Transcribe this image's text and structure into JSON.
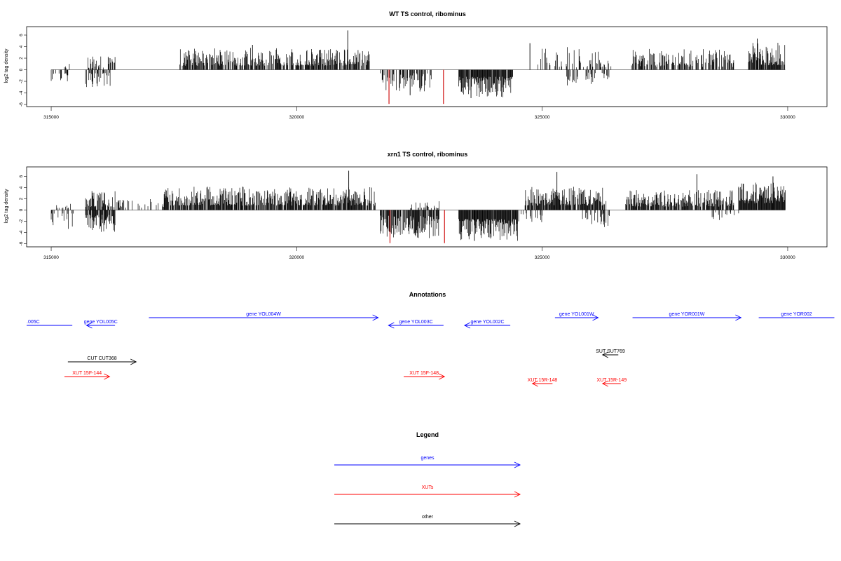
{
  "colors": {
    "gene": "#0000ff",
    "xut": "#ff0000",
    "other": "#000000",
    "highlight": "#cc0000",
    "bar": "#000000"
  },
  "chart_data": [
    {
      "type": "bar",
      "title": "WT TS control, ribominus",
      "ylabel": "log2 tag density",
      "xlim": [
        314500,
        330800
      ],
      "ylim": [
        -6,
        7.3
      ],
      "xticks": [
        315000,
        320000,
        325000,
        330000
      ],
      "xtick_labels": [
        "315000",
        "320000",
        "325000",
        "330000"
      ],
      "yticks": [
        -6,
        -4,
        -2,
        0,
        2,
        4,
        6
      ],
      "ytick_labels": [
        "-6",
        "-4",
        "-2",
        "0",
        "2",
        "4",
        "6"
      ],
      "segments": [
        {
          "from": 315000,
          "to": 315400,
          "sign": -1,
          "lo": 0.6,
          "hi": 2.4,
          "density": 0.3
        },
        {
          "from": 315250,
          "to": 315400,
          "sign": 1,
          "lo": 0.3,
          "hi": 1.8,
          "density": 0.3
        },
        {
          "from": 315700,
          "to": 316200,
          "sign": -1,
          "lo": 0.5,
          "hi": 3.0,
          "density": 0.55
        },
        {
          "from": 315750,
          "to": 316300,
          "sign": 1,
          "lo": 0.3,
          "hi": 2.3,
          "density": 0.4
        },
        {
          "from": 317600,
          "to": 321500,
          "sign": 1,
          "lo": 0.7,
          "hi": 3.8,
          "density": 0.72
        },
        {
          "from": 321700,
          "to": 322800,
          "sign": -1,
          "lo": 0.6,
          "hi": 3.8,
          "density": 0.55
        },
        {
          "from": 323300,
          "to": 324400,
          "sign": -1,
          "lo": 1.2,
          "hi": 4.8,
          "density": 0.95
        },
        {
          "from": 324900,
          "to": 325700,
          "sign": 1,
          "lo": 0.4,
          "hi": 4.0,
          "density": 0.4
        },
        {
          "from": 325500,
          "to": 326400,
          "sign": -1,
          "lo": 0.5,
          "hi": 2.8,
          "density": 0.25
        },
        {
          "from": 325700,
          "to": 326400,
          "sign": 1,
          "lo": 0.4,
          "hi": 3.6,
          "density": 0.35
        },
        {
          "from": 326800,
          "to": 328900,
          "sign": 1,
          "lo": 0.5,
          "hi": 3.6,
          "density": 0.62
        },
        {
          "from": 329200,
          "to": 329950,
          "sign": 1,
          "lo": 0.8,
          "hi": 4.8,
          "density": 0.82
        }
      ],
      "spikes": [
        {
          "x": 321040,
          "y": 6.8,
          "color": "bar"
        },
        {
          "x": 319100,
          "y": 4.3,
          "color": "bar"
        },
        {
          "x": 324750,
          "y": 4.6,
          "color": "bar"
        },
        {
          "x": 329380,
          "y": 5.4,
          "color": "bar"
        },
        {
          "x": 322310,
          "y": -4.4,
          "color": "bar"
        },
        {
          "x": 323550,
          "y": -4.9,
          "color": "bar"
        },
        {
          "x": 321880,
          "y": -5.9,
          "color": "highlight"
        },
        {
          "x": 322990,
          "y": -5.9,
          "color": "highlight"
        }
      ]
    },
    {
      "type": "bar",
      "title": "xrn1 TS control, ribominus",
      "ylabel": "log2 tag density",
      "xlim": [
        314500,
        330800
      ],
      "ylim": [
        -6,
        7.3
      ],
      "xticks": [
        315000,
        320000,
        325000,
        330000
      ],
      "xtick_labels": [
        "315000",
        "320000",
        "325000",
        "330000"
      ],
      "yticks": [
        -6,
        -4,
        -2,
        0,
        2,
        4,
        6
      ],
      "ytick_labels": [
        "-6",
        "-4",
        "-2",
        "0",
        "2",
        "4",
        "6"
      ],
      "segments": [
        {
          "from": 315000,
          "to": 315450,
          "sign": -1,
          "lo": 0.6,
          "hi": 3.6,
          "density": 0.35
        },
        {
          "from": 315100,
          "to": 315450,
          "sign": 1,
          "lo": 0.3,
          "hi": 1.6,
          "density": 0.3
        },
        {
          "from": 315700,
          "to": 316300,
          "sign": -1,
          "lo": 0.8,
          "hi": 4.0,
          "density": 0.8
        },
        {
          "from": 315700,
          "to": 316300,
          "sign": 1,
          "lo": 0.5,
          "hi": 3.4,
          "density": 0.7
        },
        {
          "from": 316300,
          "to": 317300,
          "sign": 1,
          "lo": 0.4,
          "hi": 2.0,
          "density": 0.35
        },
        {
          "from": 317300,
          "to": 321600,
          "sign": 1,
          "lo": 0.8,
          "hi": 4.2,
          "density": 0.85
        },
        {
          "from": 321700,
          "to": 322900,
          "sign": -1,
          "lo": 1.0,
          "hi": 5.0,
          "density": 0.85
        },
        {
          "from": 322300,
          "to": 322900,
          "sign": 1,
          "lo": 0.3,
          "hi": 1.6,
          "density": 0.35
        },
        {
          "from": 323300,
          "to": 324500,
          "sign": -1,
          "lo": 1.6,
          "hi": 5.5,
          "density": 0.98
        },
        {
          "from": 324500,
          "to": 325000,
          "sign": -1,
          "lo": 0.4,
          "hi": 2.2,
          "density": 0.3
        },
        {
          "from": 324650,
          "to": 326300,
          "sign": 1,
          "lo": 0.8,
          "hi": 4.2,
          "density": 0.85
        },
        {
          "from": 325800,
          "to": 326400,
          "sign": -1,
          "lo": 0.5,
          "hi": 3.5,
          "density": 0.35
        },
        {
          "from": 326700,
          "to": 328900,
          "sign": 1,
          "lo": 0.6,
          "hi": 3.6,
          "density": 0.82
        },
        {
          "from": 328400,
          "to": 329000,
          "sign": -1,
          "lo": 0.4,
          "hi": 1.8,
          "density": 0.25
        },
        {
          "from": 329000,
          "to": 329950,
          "sign": 1,
          "lo": 1.2,
          "hi": 5.0,
          "density": 0.98
        }
      ],
      "spikes": [
        {
          "x": 321060,
          "y": 7.0,
          "color": "bar"
        },
        {
          "x": 325300,
          "y": 6.8,
          "color": "bar"
        },
        {
          "x": 328150,
          "y": 6.4,
          "color": "bar"
        },
        {
          "x": 329700,
          "y": 6.0,
          "color": "bar"
        },
        {
          "x": 323620,
          "y": -5.5,
          "color": "bar"
        },
        {
          "x": 321900,
          "y": -5.9,
          "color": "highlight"
        },
        {
          "x": 323010,
          "y": -5.9,
          "color": "highlight"
        }
      ]
    }
  ],
  "annotations": {
    "title": "Annotations",
    "features": [
      {
        "label": ".005C",
        "color": "gene",
        "x1": 314240,
        "x2": 315430,
        "row": 0,
        "arrow": "none"
      },
      {
        "label": "gene YOL005C",
        "color": "gene",
        "x1": 315720,
        "x2": 316300,
        "row": 0,
        "arrow": "left"
      },
      {
        "label": "gene YOL004W",
        "color": "gene",
        "x1": 316990,
        "x2": 321660,
        "row": 1,
        "arrow": "right"
      },
      {
        "label": "gene YOL003C",
        "color": "gene",
        "x1": 321870,
        "x2": 322990,
        "row": 0,
        "arrow": "left"
      },
      {
        "label": "gene YOL002C",
        "color": "gene",
        "x1": 323420,
        "x2": 324350,
        "row": 0,
        "arrow": "left"
      },
      {
        "label": "gene YOL001W",
        "color": "gene",
        "x1": 325260,
        "x2": 326140,
        "row": 1,
        "arrow": "right"
      },
      {
        "label": "gene YOR001W",
        "color": "gene",
        "x1": 326840,
        "x2": 329050,
        "row": 1,
        "arrow": "right"
      },
      {
        "label": "gene YOR002",
        "color": "gene",
        "x1": 329410,
        "x2": 330950,
        "row": 1,
        "arrow": "none"
      },
      {
        "label": "CUT CUT368",
        "color": "other",
        "x1": 315340,
        "x2": 316730,
        "row": 2,
        "arrow": "right"
      },
      {
        "label": "SUT SUT769",
        "color": "other",
        "x1": 326230,
        "x2": 326550,
        "row": 3,
        "arrow": "left"
      },
      {
        "label": "XUT 15F-144",
        "color": "xut",
        "x1": 315270,
        "x2": 316190,
        "row": 4,
        "arrow": "right"
      },
      {
        "label": "XUT 15F-148",
        "color": "xut",
        "x1": 322180,
        "x2": 323010,
        "row": 4,
        "arrow": "right"
      },
      {
        "label": "XUT 15R-148",
        "color": "xut",
        "x1": 324800,
        "x2": 325210,
        "row": 5,
        "arrow": "left"
      },
      {
        "label": "XUT 15R-149",
        "color": "xut",
        "x1": 326230,
        "x2": 326600,
        "row": 5,
        "arrow": "left"
      }
    ]
  },
  "legend": {
    "title": "Legend",
    "items": [
      {
        "label": "genes",
        "color": "gene"
      },
      {
        "label": "XUTs",
        "color": "xut"
      },
      {
        "label": "other",
        "color": "other"
      }
    ]
  }
}
